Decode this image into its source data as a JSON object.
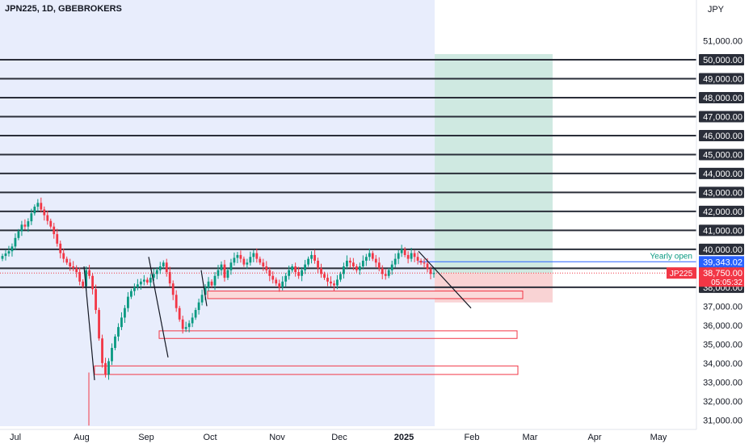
{
  "header": {
    "symbol_title": "JPN225, 1D, GBEBROKERS",
    "currency": "JPY"
  },
  "colors": {
    "up": "#089981",
    "down": "#f23645",
    "level_line": "#2a2e39",
    "highlight_bg": "#e8edfc",
    "target_zone": "#cfe9e1",
    "stop_zone": "#f9d3d4",
    "yearly_open": "#2962ff",
    "zone_outline": "#f23645"
  },
  "chart_data": {
    "type": "candlestick",
    "symbol": "JPN225",
    "timeframe": "1D",
    "broker": "GBEBROKERS",
    "currency": "JPY",
    "y_range": [
      30500,
      52300
    ],
    "x_labels": [
      "Jul",
      "Aug",
      "Sep",
      "Oct",
      "Nov",
      "Dec",
      "2025",
      "Feb",
      "Mar",
      "Apr",
      "May"
    ],
    "y_ticks": [
      "31,000.00",
      "32,000.00",
      "33,000.00",
      "34,000.00",
      "35,000.00",
      "36,000.00",
      "37,000.00",
      "38,000.00",
      "39,000.00",
      "40,000.00",
      "41,000.00",
      "42,000.00",
      "43,000.00",
      "44,000.00",
      "45,000.00",
      "46,000.00",
      "47,000.00",
      "48,000.00",
      "49,000.00",
      "50,000.00",
      "51,000.00"
    ],
    "levels": [
      "38,000.00",
      "39,000.00",
      "40,000.00",
      "41,000.00",
      "42,000.00",
      "43,000.00",
      "44,000.00",
      "45,000.00",
      "46,000.00",
      "47,000.00",
      "48,000.00",
      "49,000.00",
      "50,000.00"
    ],
    "yearly_open": {
      "label": "Yearly open",
      "value": "39,343.02"
    },
    "last_price": {
      "label": "JP225",
      "value": "38,750.00",
      "countdown": "05:05:32"
    },
    "trade_zone": {
      "entry": 38750,
      "target": 50300,
      "stop": 37200
    },
    "demand_zones": [
      {
        "from_date": "Oct",
        "low": 37400,
        "high": 37800
      },
      {
        "from_date": "Sep",
        "low": 35300,
        "high": 35700
      },
      {
        "from_date": "Aug",
        "low": 33400,
        "high": 33850
      }
    ],
    "closes": [
      39650,
      39780,
      39900,
      40150,
      40600,
      40950,
      41300,
      41200,
      41480,
      41900,
      42250,
      42450,
      42100,
      41800,
      41500,
      41200,
      40800,
      40300,
      39800,
      39500,
      39300,
      39100,
      39000,
      38800,
      38300,
      38050,
      38900,
      38600,
      37900,
      36800,
      35300,
      34000,
      33400,
      34100,
      34800,
      35400,
      35900,
      36400,
      36900,
      37500,
      37800,
      38000,
      38150,
      38300,
      38400,
      38250,
      38500,
      38700,
      38900,
      39100,
      39300,
      38800,
      38200,
      37600,
      36900,
      36300,
      35800,
      35900,
      36100,
      36400,
      36800,
      37200,
      37600,
      38000,
      38300,
      38100,
      38600,
      38900,
      39200,
      38500,
      38900,
      39300,
      39550,
      39700,
      39500,
      39200,
      39300,
      39600,
      39800,
      39500,
      39300,
      39100,
      38900,
      38600,
      38400,
      38200,
      38000,
      38300,
      38600,
      38900,
      39100,
      38800,
      38600,
      38900,
      39200,
      39500,
      39700,
      39400,
      39000,
      38700,
      38500,
      38300,
      38200,
      38100,
      38400,
      38700,
      39100,
      39400,
      39300,
      39100,
      38900,
      39100,
      39400,
      39600,
      39800,
      39500,
      39300,
      39000,
      38700,
      38600,
      38900,
      39200,
      39500,
      39800,
      40000,
      39700,
      39500,
      39800,
      39600,
      39400,
      39300,
      39250,
      38950,
      38700,
      38750
    ]
  }
}
